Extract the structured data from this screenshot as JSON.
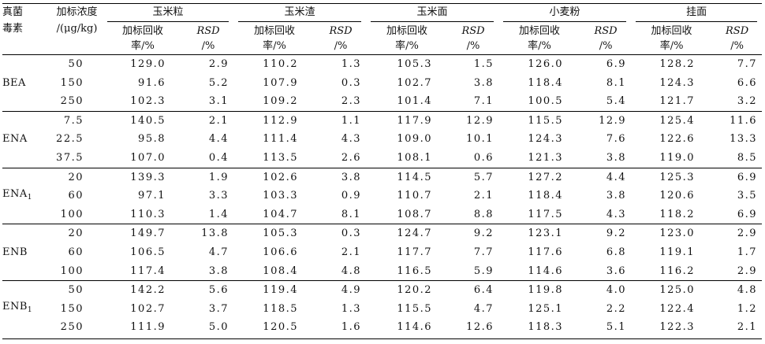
{
  "header": {
    "toxin_label": [
      "真菌",
      "毒素"
    ],
    "conc_label": [
      "加标浓度",
      "/(μg/kg)"
    ],
    "recovery_label": [
      "加标回收",
      "率/%"
    ],
    "rsd_label": [
      "RSD",
      "/%"
    ],
    "matrices": [
      "玉米粒",
      "玉米渣",
      "玉米面",
      "小麦粉",
      "挂面"
    ]
  },
  "groups": [
    {
      "name": "BEA",
      "sub": "",
      "rows": [
        {
          "conc": "50",
          "vals": [
            "129.0",
            "2.9",
            "110.2",
            "1.3",
            "105.3",
            "1.5",
            "126.0",
            "6.9",
            "128.2",
            "7.7"
          ]
        },
        {
          "conc": "150",
          "vals": [
            "91.6",
            "5.2",
            "107.9",
            "0.3",
            "102.7",
            "3.8",
            "118.4",
            "8.1",
            "124.3",
            "6.6"
          ]
        },
        {
          "conc": "250",
          "vals": [
            "102.3",
            "3.1",
            "109.2",
            "2.3",
            "101.4",
            "7.1",
            "100.5",
            "5.4",
            "121.7",
            "3.2"
          ]
        }
      ]
    },
    {
      "name": "ENA",
      "sub": "",
      "rows": [
        {
          "conc": "7.5",
          "vals": [
            "140.5",
            "2.1",
            "112.9",
            "1.1",
            "117.9",
            "12.9",
            "115.5",
            "12.9",
            "125.4",
            "11.6"
          ]
        },
        {
          "conc": "22.5",
          "vals": [
            "95.8",
            "4.4",
            "111.4",
            "4.3",
            "109.0",
            "10.1",
            "124.3",
            "7.6",
            "122.6",
            "13.3"
          ]
        },
        {
          "conc": "37.5",
          "vals": [
            "107.0",
            "0.4",
            "113.5",
            "2.6",
            "108.1",
            "0.6",
            "121.3",
            "3.8",
            "119.0",
            "8.5"
          ]
        }
      ]
    },
    {
      "name": "ENA",
      "sub": "1",
      "rows": [
        {
          "conc": "20",
          "vals": [
            "139.3",
            "1.9",
            "102.6",
            "3.8",
            "114.5",
            "5.7",
            "127.2",
            "4.4",
            "125.3",
            "6.9"
          ]
        },
        {
          "conc": "60",
          "vals": [
            "97.1",
            "3.3",
            "103.3",
            "0.9",
            "110.7",
            "2.1",
            "118.4",
            "3.8",
            "120.6",
            "3.5"
          ]
        },
        {
          "conc": "100",
          "vals": [
            "110.3",
            "1.4",
            "104.7",
            "8.1",
            "108.7",
            "8.8",
            "117.5",
            "4.3",
            "118.2",
            "6.9"
          ]
        }
      ]
    },
    {
      "name": "ENB",
      "sub": "",
      "rows": [
        {
          "conc": "20",
          "vals": [
            "149.7",
            "13.8",
            "105.3",
            "0.3",
            "124.7",
            "9.2",
            "123.1",
            "9.2",
            "123.0",
            "2.9"
          ]
        },
        {
          "conc": "60",
          "vals": [
            "106.5",
            "4.7",
            "106.6",
            "2.1",
            "117.7",
            "7.7",
            "117.6",
            "6.8",
            "119.1",
            "1.7"
          ]
        },
        {
          "conc": "100",
          "vals": [
            "117.4",
            "3.8",
            "108.4",
            "4.8",
            "116.5",
            "5.9",
            "114.6",
            "3.6",
            "116.2",
            "2.9"
          ]
        }
      ]
    },
    {
      "name": "ENB",
      "sub": "1",
      "rows": [
        {
          "conc": "50",
          "vals": [
            "142.2",
            "5.6",
            "119.4",
            "4.9",
            "120.2",
            "6.4",
            "119.8",
            "4.0",
            "125.0",
            "4.8"
          ]
        },
        {
          "conc": "150",
          "vals": [
            "102.7",
            "3.7",
            "118.5",
            "1.3",
            "115.5",
            "4.7",
            "125.1",
            "2.2",
            "122.4",
            "1.2"
          ]
        },
        {
          "conc": "250",
          "vals": [
            "111.9",
            "5.0",
            "120.5",
            "1.6",
            "114.6",
            "12.6",
            "118.3",
            "5.1",
            "122.3",
            "2.1"
          ]
        }
      ]
    }
  ]
}
